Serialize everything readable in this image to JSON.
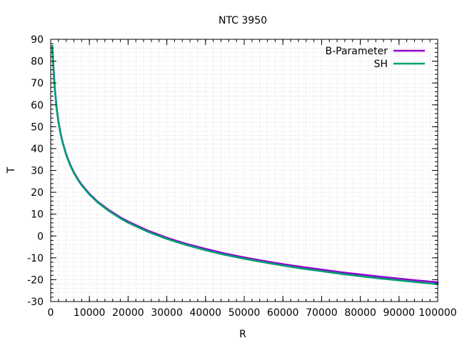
{
  "chart_data": {
    "type": "line",
    "title": "NTC 3950",
    "xlabel": "R",
    "ylabel": "T",
    "xlim": [
      0,
      100000
    ],
    "ylim": [
      -30,
      90
    ],
    "x_ticks": [
      0,
      10000,
      20000,
      30000,
      40000,
      50000,
      60000,
      70000,
      80000,
      90000,
      100000
    ],
    "y_ticks": [
      -30,
      -20,
      -10,
      0,
      10,
      20,
      30,
      40,
      50,
      60,
      70,
      80,
      90
    ],
    "x_tick_labels": [
      "0",
      "10000",
      "20000",
      "30000",
      "40000",
      "50000",
      "60000",
      "70000",
      "80000",
      "90000",
      "100000"
    ],
    "y_tick_labels": [
      "-30",
      "-20",
      "-10",
      "0",
      "10",
      "20",
      "30",
      "40",
      "50",
      "60",
      "70",
      "80",
      "90"
    ],
    "grid": true,
    "legend_position": "top-right",
    "series": [
      {
        "name": "B-Parameter",
        "color": "#9400d3",
        "x": [
          400,
          600,
          1000,
          1500,
          2000,
          2500,
          3000,
          4000,
          5000,
          6000,
          7000,
          8000,
          10000,
          12000,
          15000,
          18000,
          20000,
          25000,
          30000,
          35000,
          40000,
          45000,
          50000,
          55000,
          60000,
          65000,
          70000,
          75000,
          80000,
          85000,
          90000,
          95000,
          100000
        ],
        "y": [
          87,
          80.5,
          68.9,
          59.1,
          52.4,
          47.5,
          43.5,
          37.4,
          32.8,
          29.1,
          26.1,
          23.5,
          19.3,
          15.9,
          11.9,
          8.5,
          6.6,
          2.5,
          -0.8,
          -3.6,
          -5.9,
          -8.0,
          -9.8,
          -11.4,
          -12.9,
          -14.2,
          -15.4,
          -16.6,
          -17.6,
          -18.6,
          -19.5,
          -20.4,
          -21.2
        ]
      },
      {
        "name": "SH",
        "color": "#009e73",
        "x": [
          400,
          600,
          1000,
          1500,
          2000,
          2500,
          3000,
          4000,
          5000,
          6000,
          7000,
          8000,
          10000,
          12000,
          15000,
          18000,
          20000,
          25000,
          30000,
          35000,
          40000,
          45000,
          50000,
          55000,
          60000,
          65000,
          70000,
          75000,
          80000,
          85000,
          90000,
          95000,
          100000
        ],
        "y": [
          87,
          80.3,
          68.6,
          58.8,
          52.1,
          47.2,
          43.2,
          37.1,
          32.5,
          28.8,
          25.8,
          23.2,
          19.0,
          15.6,
          11.5,
          8.1,
          6.1,
          2.0,
          -1.3,
          -4.1,
          -6.5,
          -8.6,
          -10.4,
          -12.0,
          -13.5,
          -14.9,
          -16.1,
          -17.3,
          -18.4,
          -19.4,
          -20.3,
          -21.2,
          -22.0
        ]
      }
    ]
  }
}
